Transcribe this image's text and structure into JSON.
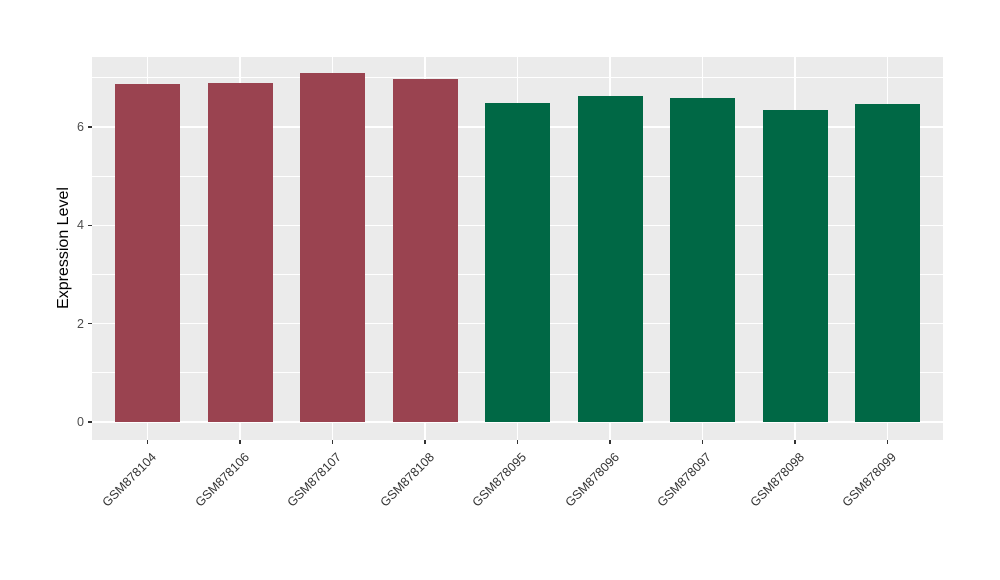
{
  "figure": {
    "background_color": "#FFFFFF",
    "panel_background_color": "#EBEBEB",
    "gridline_color": "#FFFFFF",
    "tick_mark_color": "#333333",
    "axis_text_color": "#4D4D4D"
  },
  "chart_data": {
    "type": "bar",
    "title": "",
    "xlabel": "",
    "ylabel": "Expression Level",
    "categories": [
      "GSM878104",
      "GSM878106",
      "GSM878107",
      "GSM878108",
      "GSM878095",
      "GSM878096",
      "GSM878097",
      "GSM878098",
      "GSM878099"
    ],
    "values": [
      6.88,
      6.9,
      7.09,
      6.98,
      6.48,
      6.63,
      6.58,
      6.35,
      6.46
    ],
    "bar_colors": [
      "#9A4350",
      "#9A4350",
      "#9A4350",
      "#9A4350",
      "#006845",
      "#006845",
      "#006845",
      "#006845",
      "#006845"
    ],
    "yticks": [
      0,
      2,
      4,
      6
    ],
    "yticks_minor": [
      1,
      3,
      5,
      7
    ],
    "ylim": [
      -0.37,
      7.42
    ],
    "grid": true,
    "legend": false,
    "x_label_rotation_deg": 45
  }
}
